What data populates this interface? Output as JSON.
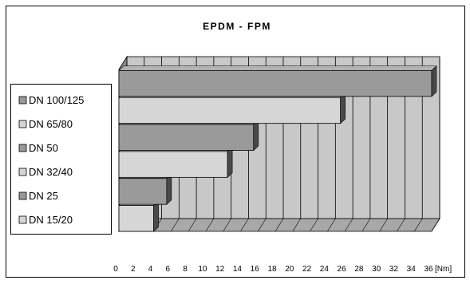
{
  "chart_data": {
    "type": "bar",
    "orientation": "horizontal",
    "title": "EPDM - FPM",
    "categories": [
      "DN 15/20",
      "DN 25",
      "DN 32/40",
      "DN 50",
      "DN 65/80",
      "DN 100/125"
    ],
    "values": [
      4,
      5.5,
      12.5,
      15.5,
      25.5,
      36
    ],
    "xlabel": "",
    "ylabel": "",
    "x_unit": "[Nm]",
    "xlim": [
      0,
      36
    ],
    "x_ticks": [
      0,
      2,
      4,
      6,
      8,
      10,
      12,
      14,
      16,
      18,
      20,
      22,
      24,
      26,
      28,
      30,
      32,
      34,
      36
    ],
    "grid": true,
    "legend": "left",
    "three_d": true,
    "colors": {
      "dark_bar": "#9a9a9a",
      "light_bar": "#d6d6d6",
      "wall": "#c8c8c8",
      "floor": "#a8a8a8",
      "bar_side": "#4a4a4a"
    }
  }
}
